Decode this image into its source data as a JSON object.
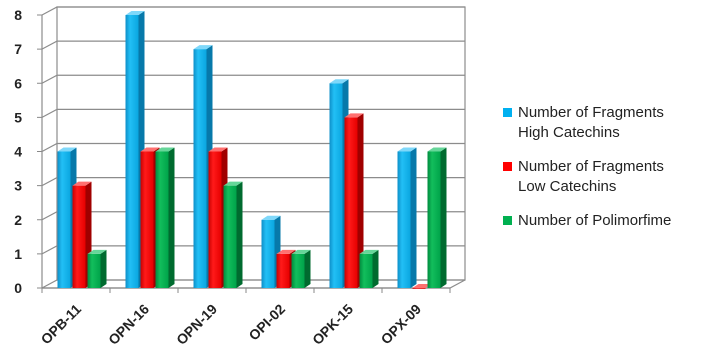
{
  "chart_data": {
    "type": "bar",
    "categories": [
      "OPB-11",
      "OPN-16",
      "OPN-19",
      "OPI-02",
      "OPK-15",
      "OPX-09"
    ],
    "series": [
      {
        "name": "Number of Fragments High Catechins",
        "name_lines": [
          "Number of Fragments",
          "High Catechins"
        ],
        "values": [
          4,
          8,
          7,
          2,
          6,
          4
        ],
        "color": "#00B0F0"
      },
      {
        "name": "Number of Fragments Low Catechins",
        "name_lines": [
          "Number of Fragments",
          "Low Catechins"
        ],
        "values": [
          3,
          4,
          4,
          1,
          5,
          0
        ],
        "color": "#FF0000"
      },
      {
        "name": "Number of Polimorfime",
        "name_lines": [
          "Number of Polimorfime"
        ],
        "values": [
          1,
          4,
          3,
          1,
          1,
          4
        ],
        "color": "#00B050"
      }
    ],
    "yticks": [
      "0",
      "1",
      "2",
      "3",
      "4",
      "5",
      "6",
      "7",
      "8"
    ],
    "ylim": [
      0,
      8
    ],
    "grid": true,
    "legend_position": "right",
    "style": "3d-clustered-column"
  }
}
